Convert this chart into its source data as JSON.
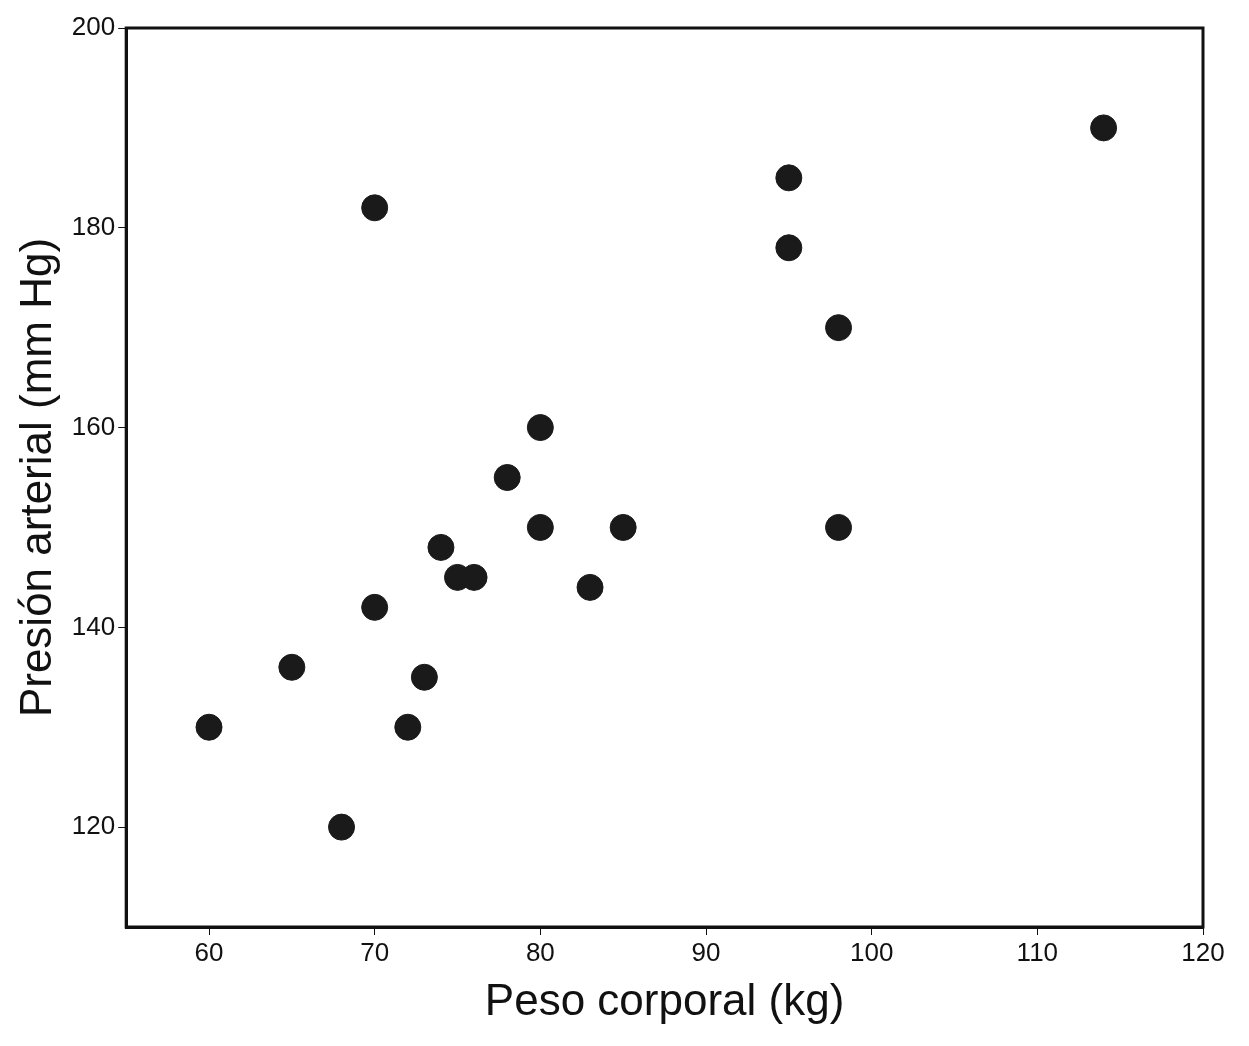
{
  "chart_data": {
    "type": "scatter",
    "xlabel": "Peso corporal (kg)",
    "ylabel": "Presión arterial (mm Hg)",
    "x": [
      114,
      95,
      95,
      98,
      70,
      80,
      78,
      80,
      85,
      98,
      74,
      75,
      76,
      83,
      70,
      65,
      73,
      60,
      72,
      68
    ],
    "values": [
      190,
      185,
      178,
      170,
      182,
      160,
      155,
      150,
      150,
      150,
      148,
      145,
      145,
      144,
      142,
      136,
      135,
      130,
      130,
      120
    ],
    "color": "#1a1a1a",
    "marker": "circle",
    "xlim": [
      55,
      120
    ],
    "xticks": [
      60,
      70,
      80,
      90,
      100,
      110,
      120
    ],
    "ylim": [
      110,
      200
    ],
    "yticks": [
      120,
      140,
      160,
      180,
      200
    ],
    "grid": false,
    "legend": false
  }
}
